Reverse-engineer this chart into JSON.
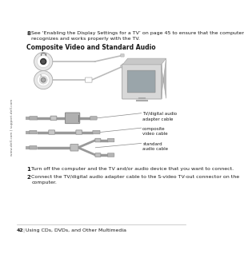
{
  "bg_color": "#ffffff",
  "sidebar_text": "www.dell.com | support.dell.com",
  "bullet8_text": "See ‘Enabling the Display Settings for a TV’ on page 45 to ensure that the computer\nrecognizes and works properly with the TV.",
  "section_title": "Composite Video and Standard Audio",
  "label1": "TV/digital audio\nadapter cable",
  "label2": "composite\nvideo cable",
  "label3": "standard\naudio cable",
  "step1": "Turn off the computer and the TV and/or audio device that you want to connect.",
  "step2": "Connect the TV/digital audio adapter cable to the S-video TV-out connector on the\ncomputer.",
  "footer_num": "42",
  "footer_text": "Using CDs, DVDs, and Other Multimedia",
  "text_color": "#1a1a1a",
  "gray_dark": "#666666",
  "gray_med": "#999999",
  "gray_light": "#cccccc",
  "gray_cable": "#aaaaaa",
  "gray_plug": "#b8b8b8",
  "gray_box": "#c0c0c0",
  "gray_adapter": "#9a9a9a",
  "sidebar_color": "#666666"
}
